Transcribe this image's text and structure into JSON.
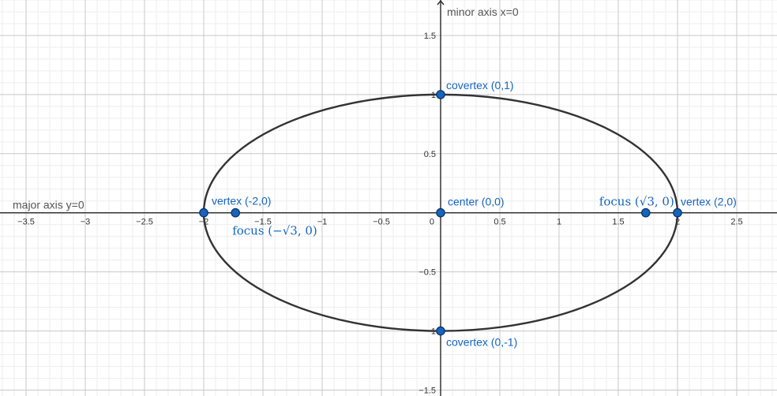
{
  "chart_data": {
    "type": "scatter",
    "xlim": [
      -3.72,
      2.84
    ],
    "ylim": [
      -1.55,
      1.8
    ],
    "grid": true,
    "x_ticks": [
      {
        "v": -3.5,
        "t": "−3.5"
      },
      {
        "v": -3,
        "t": "−3"
      },
      {
        "v": -2.5,
        "t": "−2.5"
      },
      {
        "v": -2,
        "t": "−2"
      },
      {
        "v": -1.5,
        "t": "−1.5"
      },
      {
        "v": -1,
        "t": "−1"
      },
      {
        "v": -0.5,
        "t": "−0.5"
      },
      {
        "v": 0.5,
        "t": "0.5"
      },
      {
        "v": 1,
        "t": "1"
      },
      {
        "v": 1.5,
        "t": "1.5"
      },
      {
        "v": 2,
        "t": "2"
      },
      {
        "v": 2.5,
        "t": "2.5"
      }
    ],
    "origin_label": "0",
    "y_ticks": [
      {
        "v": 1.5,
        "t": "1.5"
      },
      {
        "v": 1,
        "t": "1"
      },
      {
        "v": 0.5,
        "t": "0.5"
      },
      {
        "v": -0.5,
        "t": "−0.5"
      },
      {
        "v": -1,
        "t": "−1"
      },
      {
        "v": -1.5,
        "t": "−1.5"
      }
    ],
    "ellipse": {
      "cx": 0,
      "cy": 0,
      "a": 2,
      "b": 1,
      "color": "#333333"
    },
    "axis_labels": {
      "major": {
        "text": "major axis y=0",
        "color": "#555555"
      },
      "minor": {
        "text": "minor axis x=0",
        "color": "#555555"
      }
    },
    "point_color": "#1565c0",
    "label_color": "#1565c0",
    "points": [
      {
        "name": "covertex-top",
        "x": 0,
        "y": 1,
        "label": "covertex (0,1)"
      },
      {
        "name": "center",
        "x": 0,
        "y": 0,
        "label": "center (0,0)"
      },
      {
        "name": "covertex-bottom",
        "x": 0,
        "y": -1,
        "label": "covertex (0,-1)"
      },
      {
        "name": "vertex-left",
        "x": -2,
        "y": 0,
        "label": "vertex (-2,0)"
      },
      {
        "name": "vertex-right",
        "x": 2,
        "y": 0,
        "label": "vertex (2,0)"
      },
      {
        "name": "focus-left",
        "x": -1.732,
        "y": 0,
        "label": "focus (−√3, 0)"
      },
      {
        "name": "focus-right",
        "x": 1.732,
        "y": 0,
        "label": "focus (√3, 0)"
      }
    ]
  }
}
